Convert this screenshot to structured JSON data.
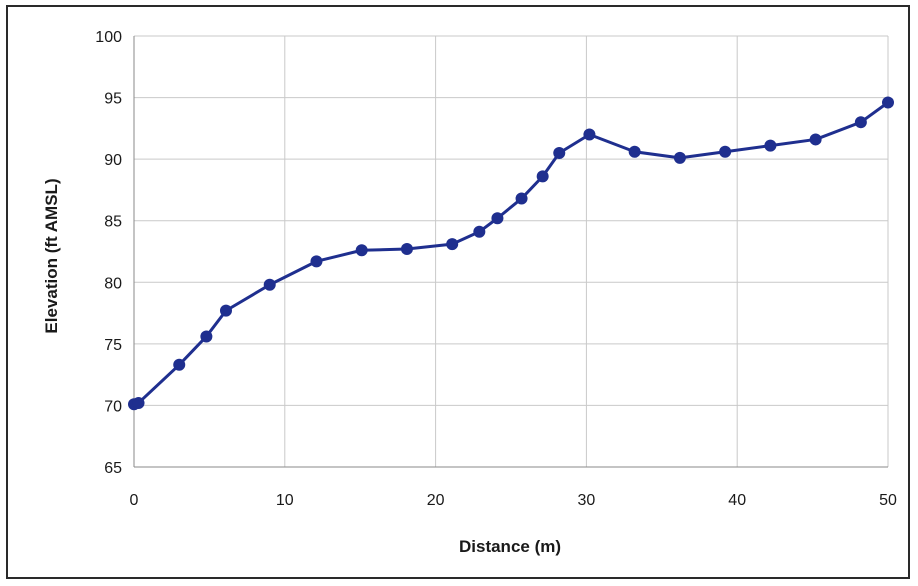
{
  "chart_data": {
    "type": "line",
    "title": "",
    "xlabel": "Distance (m)",
    "ylabel": "Elevation (ft AMSL)",
    "xlim": [
      0,
      50
    ],
    "ylim": [
      65,
      100
    ],
    "x_ticks": [
      0,
      10,
      20,
      30,
      40,
      50
    ],
    "y_ticks": [
      65,
      70,
      75,
      80,
      85,
      90,
      95,
      100
    ],
    "grid": true,
    "legend": "none",
    "series": [
      {
        "color": "#1f2f8f",
        "marker": "circle",
        "x": [
          0,
          0.3,
          3,
          4.8,
          6.1,
          9,
          12.1,
          15.1,
          18.1,
          21.1,
          22.9,
          24.1,
          25.7,
          27.1,
          28.2,
          30.2,
          33.2,
          36.2,
          39.2,
          42.2,
          45.2,
          48.2,
          50
        ],
        "y": [
          70.1,
          70.2,
          73.3,
          75.6,
          77.7,
          79.8,
          81.7,
          82.6,
          82.7,
          83.1,
          84.1,
          85.2,
          86.8,
          88.6,
          90.5,
          92.0,
          90.6,
          90.1,
          90.6,
          91.1,
          91.6,
          93.0,
          94.6
        ]
      }
    ]
  }
}
